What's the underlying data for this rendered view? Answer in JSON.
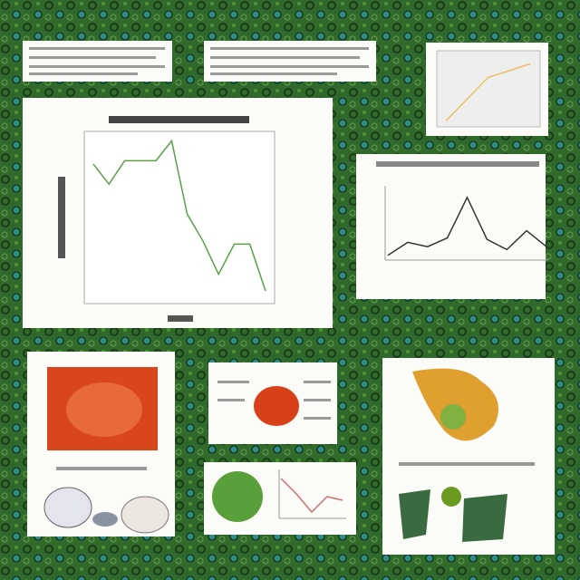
{
  "chart_data": [
    {
      "type": "line",
      "color": "#5aa04a",
      "ylim": [
        0,
        5
      ],
      "values": [
        4.1,
        3.5,
        4.2,
        4.2,
        4.2,
        4.8,
        2.6,
        1.8,
        0.8,
        1.7,
        1.7,
        0.3
      ]
    },
    {
      "type": "line",
      "color": "#333333",
      "ylim": [
        0,
        5
      ],
      "values": [
        0.2,
        1.1,
        0.8,
        1.4,
        4.2,
        1.3,
        0.6,
        1.9,
        0.8
      ]
    },
    {
      "type": "line",
      "color": "#e8c060",
      "ylim": [
        0,
        5
      ],
      "values": [
        0.1,
        3.3,
        4.3
      ]
    },
    {
      "type": "line",
      "color": "#d07070",
      "ylim": [
        0,
        5
      ],
      "values": [
        4.2,
        2.5,
        0.5,
        2.2,
        1.8
      ]
    }
  ]
}
